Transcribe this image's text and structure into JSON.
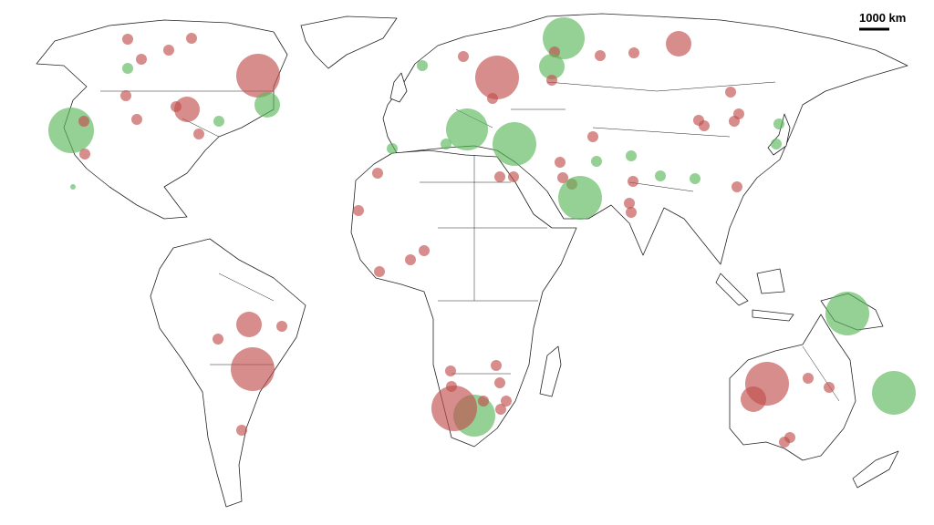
{
  "scale_bar": {
    "label": "1000 km"
  }
}
